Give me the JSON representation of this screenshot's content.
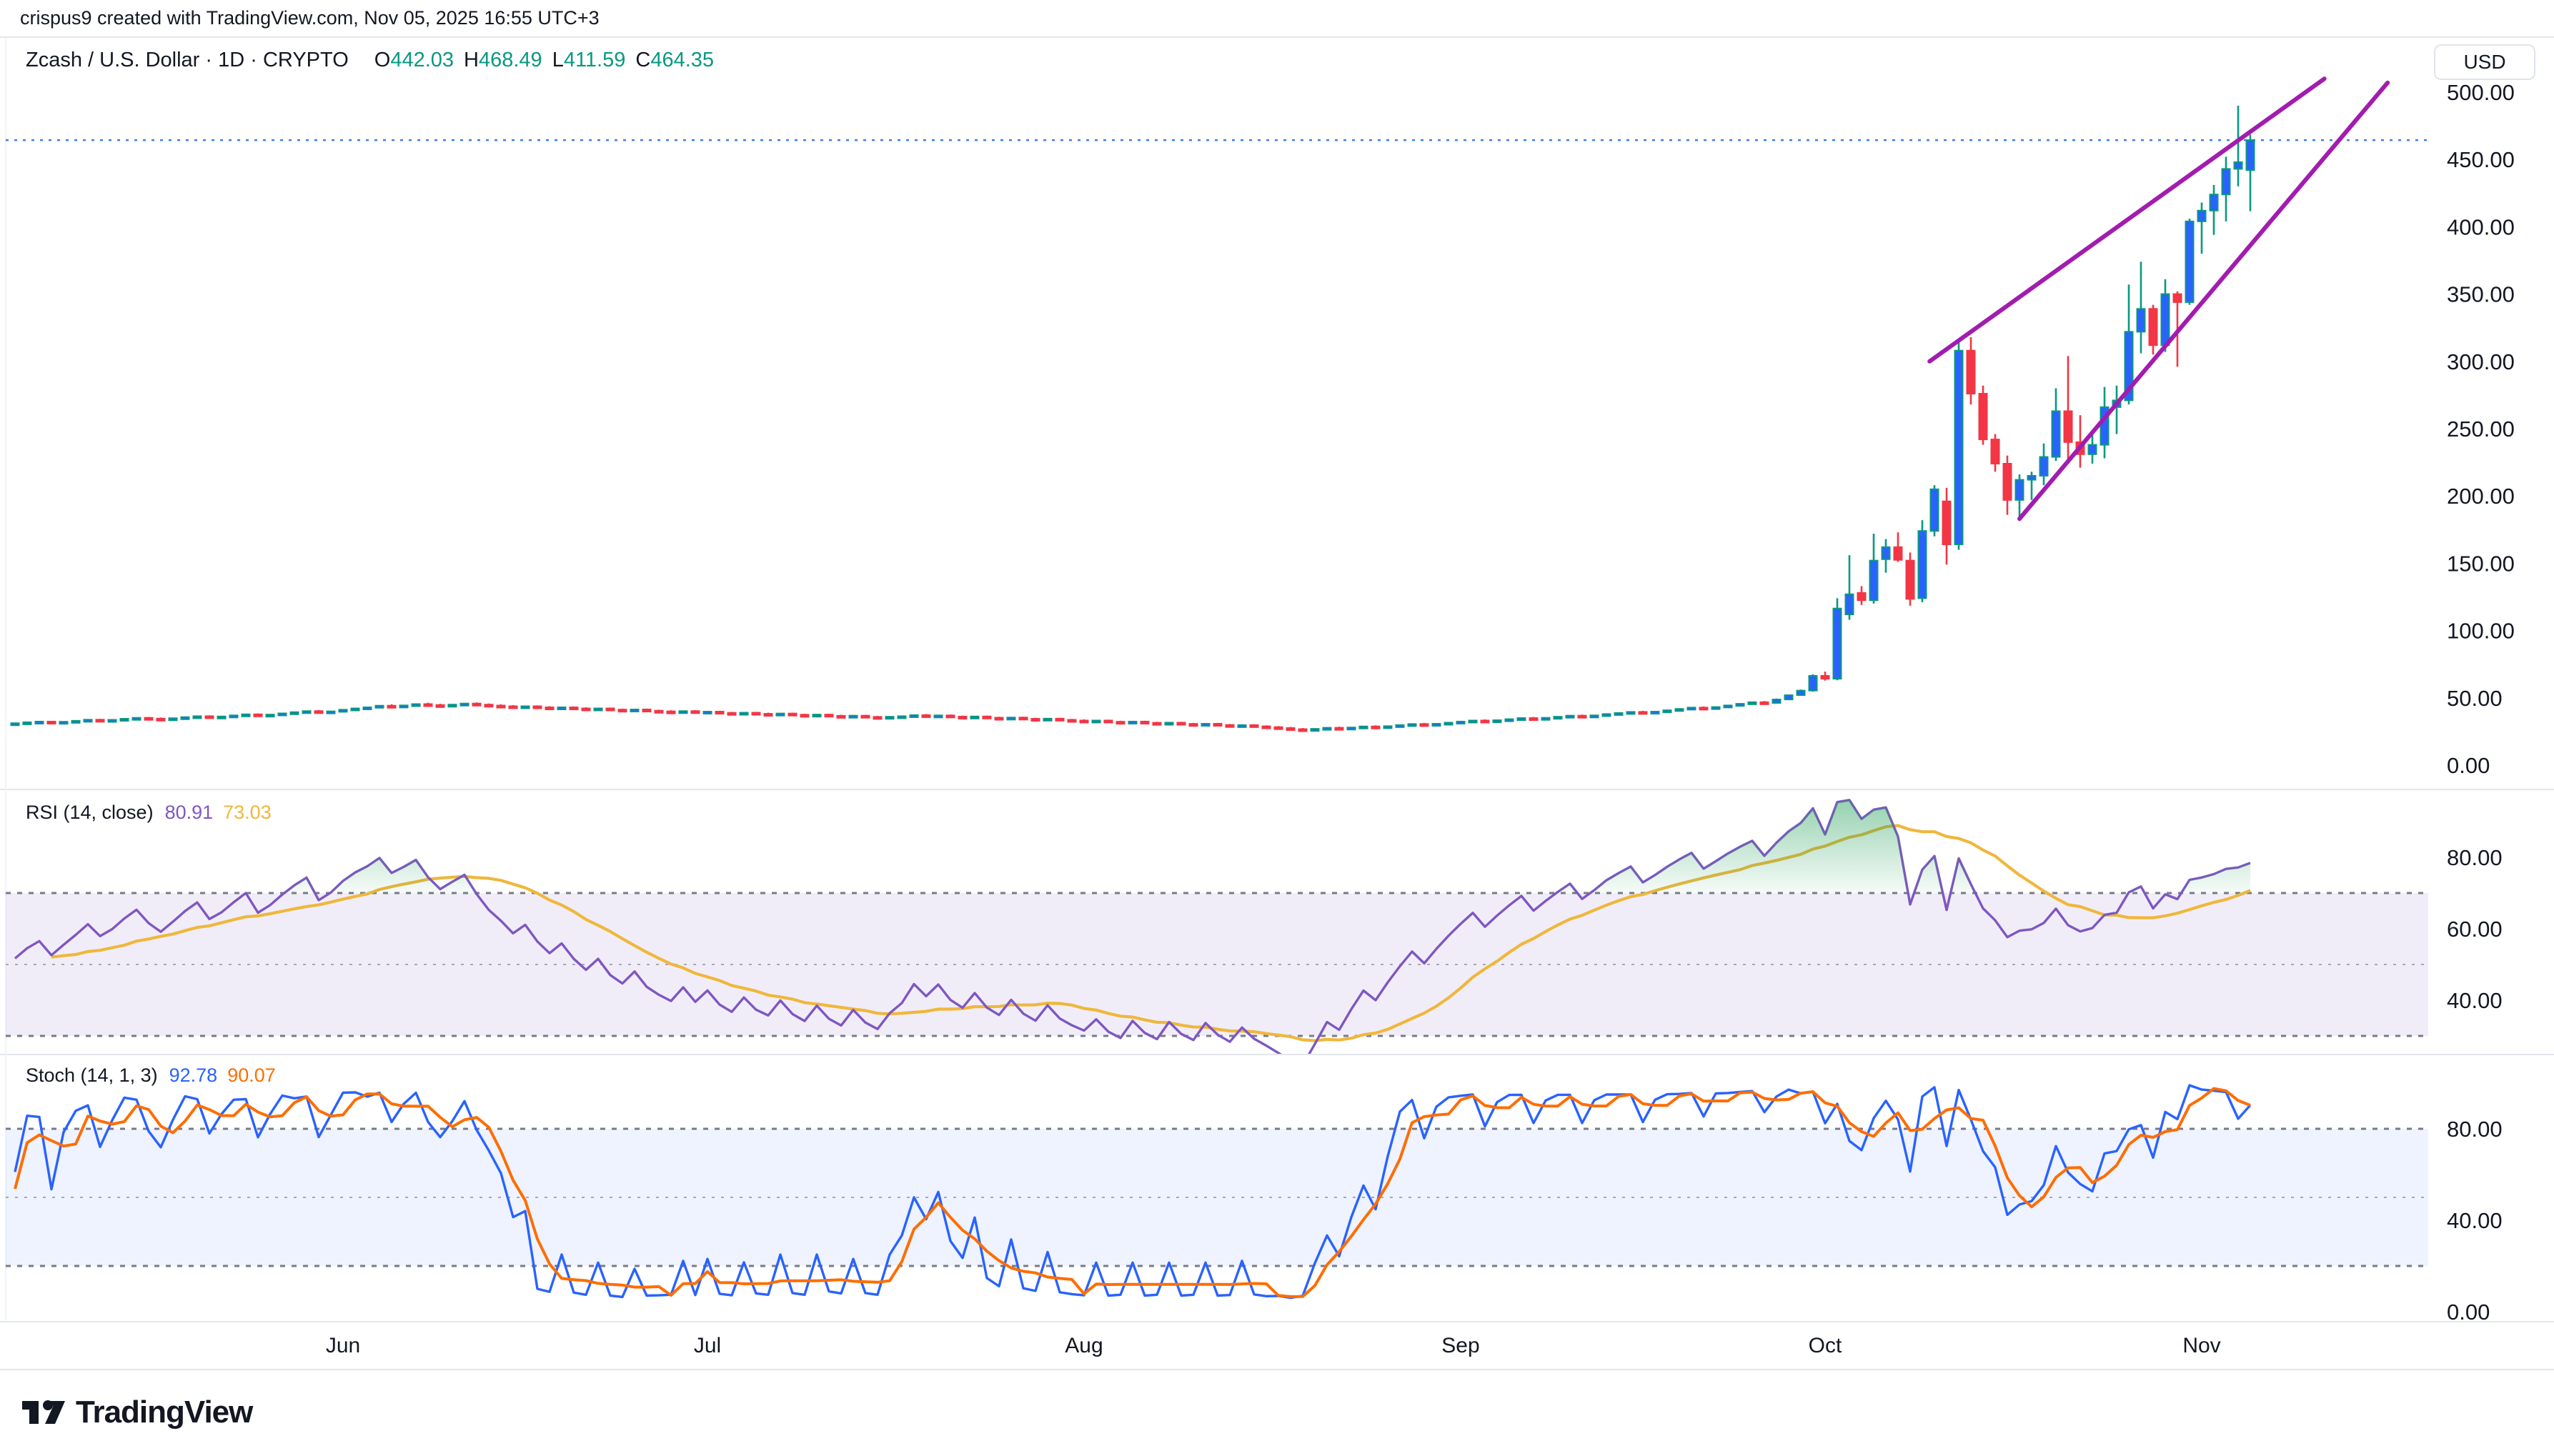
{
  "header": {
    "attribution": "crispus9 created with TradingView.com, Nov 05, 2025 16:55 UTC+3"
  },
  "symbol_bar": {
    "title": "Zcash / U.S. Dollar · 1D · CRYPTO",
    "ohlc": {
      "o_label": "O",
      "o": "442.03",
      "h_label": "H",
      "h": "468.49",
      "l_label": "L",
      "l": "411.59",
      "c_label": "C",
      "c": "464.35"
    }
  },
  "price_axis": {
    "unit_badge": "USD",
    "ticks": [
      [
        500,
        "500.00"
      ],
      [
        450,
        "450.00"
      ],
      [
        400,
        "400.00"
      ],
      [
        350,
        "350.00"
      ],
      [
        300,
        "300.00"
      ],
      [
        250,
        "250.00"
      ],
      [
        200,
        "200.00"
      ],
      [
        150,
        "150.00"
      ],
      [
        100,
        "100.00"
      ],
      [
        50,
        "50.00"
      ],
      [
        0,
        "0.00"
      ]
    ]
  },
  "rsi_pane": {
    "title": "RSI (14, close)",
    "value_rsi": "80.91",
    "value_ma": "73.03",
    "ticks": [
      [
        80,
        "80.00"
      ],
      [
        60,
        "60.00"
      ],
      [
        40,
        "40.00"
      ]
    ],
    "levels": {
      "upper": 70,
      "middle": 50,
      "lower": 30
    }
  },
  "stoch_pane": {
    "title": "Stoch (14, 1, 3)",
    "value_k": "92.78",
    "value_d": "90.07",
    "ticks": [
      [
        80,
        "80.00"
      ],
      [
        40,
        "40.00"
      ],
      [
        0,
        "0.00"
      ]
    ],
    "levels": {
      "upper": 80,
      "middle": 50,
      "lower": 20
    }
  },
  "time_axis": {
    "months": [
      [
        "Jun",
        27
      ],
      [
        "Jul",
        57
      ],
      [
        "Aug",
        88
      ],
      [
        "Sep",
        119
      ],
      [
        "Oct",
        149
      ],
      [
        "Nov",
        180
      ]
    ]
  },
  "footer": {
    "brand": "TradingView"
  },
  "colors": {
    "up_body": "#2962FF",
    "up_border": "#089981",
    "down": "#F23645",
    "rsi_line": "#7E57C2",
    "rsi_ma": "#EFB73B",
    "stoch_k": "#2962FF",
    "stoch_d": "#FF6D00",
    "trendline": "#A21CAF",
    "price_line": "#3D7EEB",
    "level_dash": "#787B86",
    "mid_dash": "#A6A9B3",
    "separator": "#E4E6EC",
    "text": "#131722",
    "rsi_band": "rgba(126,87,194,0.11)",
    "stoch_band": "rgba(41,98,255,0.08)",
    "overbought_fill": "#1F9D55"
  },
  "chart_data": {
    "type": "bar",
    "subtype": "candlestick-with-oscillators",
    "symbol": "ZECUSD",
    "title": "Zcash / U.S. Dollar",
    "interval": "1D",
    "exchange": "CRYPTO",
    "start_date": "2025-05-05",
    "end_date": "2025-11-05",
    "last_bar": {
      "open": 442.03,
      "high": 468.49,
      "low": 411.59,
      "close": 464.35
    },
    "price_line": 464.35,
    "ylim": [
      0,
      530
    ],
    "candles": [
      [
        30.8,
        31.6,
        30.2,
        31.2
      ],
      [
        31.2,
        32.2,
        30.8,
        31.9
      ],
      [
        31.9,
        32.8,
        31.4,
        32.4
      ],
      [
        32.4,
        32.9,
        31.2,
        31.6
      ],
      [
        31.6,
        32.6,
        31.1,
        32.3
      ],
      [
        32.3,
        33.4,
        31.9,
        33.0
      ],
      [
        33.0,
        34.2,
        32.6,
        33.8
      ],
      [
        33.8,
        34.4,
        32.8,
        33.2
      ],
      [
        33.2,
        34.0,
        32.5,
        33.7
      ],
      [
        33.7,
        34.8,
        33.3,
        34.5
      ],
      [
        34.5,
        35.6,
        34.0,
        35.2
      ],
      [
        35.2,
        35.8,
        34.2,
        34.6
      ],
      [
        34.6,
        35.4,
        33.9,
        34.2
      ],
      [
        34.2,
        35.2,
        33.8,
        34.9
      ],
      [
        34.9,
        36.0,
        34.4,
        35.7
      ],
      [
        35.7,
        36.8,
        35.2,
        36.4
      ],
      [
        36.4,
        37.0,
        35.3,
        35.7
      ],
      [
        35.7,
        36.6,
        35.1,
        36.2
      ],
      [
        36.2,
        37.4,
        35.8,
        37.0
      ],
      [
        37.0,
        38.2,
        36.5,
        37.8
      ],
      [
        37.8,
        38.4,
        36.6,
        37.0
      ],
      [
        37.0,
        38.0,
        36.4,
        37.6
      ],
      [
        37.6,
        38.8,
        37.1,
        38.5
      ],
      [
        38.5,
        39.8,
        38.0,
        39.4
      ],
      [
        39.4,
        40.6,
        38.9,
        40.2
      ],
      [
        40.2,
        41.0,
        38.9,
        39.3
      ],
      [
        39.3,
        40.4,
        38.8,
        40.0
      ],
      [
        40.0,
        41.5,
        39.5,
        41.2
      ],
      [
        41.2,
        42.5,
        40.8,
        42.2
      ],
      [
        42.2,
        43.5,
        41.6,
        43.0
      ],
      [
        43.0,
        44.6,
        42.6,
        44.2
      ],
      [
        44.2,
        45.2,
        43.1,
        43.6
      ],
      [
        43.6,
        44.8,
        43.0,
        44.4
      ],
      [
        44.4,
        45.8,
        44.0,
        45.4
      ],
      [
        45.4,
        46.4,
        44.2,
        44.7
      ],
      [
        44.7,
        45.6,
        43.8,
        44.2
      ],
      [
        44.2,
        45.4,
        43.6,
        45.0
      ],
      [
        45.0,
        46.2,
        44.4,
        45.8
      ],
      [
        45.8,
        46.6,
        44.6,
        45.0
      ],
      [
        45.0,
        45.8,
        43.9,
        44.3
      ],
      [
        44.3,
        45.2,
        43.4,
        43.8
      ],
      [
        43.8,
        44.6,
        42.8,
        43.2
      ],
      [
        43.2,
        44.2,
        42.6,
        43.8
      ],
      [
        43.8,
        44.4,
        42.6,
        43.0
      ],
      [
        43.0,
        43.8,
        42.0,
        42.4
      ],
      [
        42.4,
        43.4,
        41.8,
        43.0
      ],
      [
        43.0,
        43.6,
        41.8,
        42.2
      ],
      [
        42.2,
        43.0,
        41.2,
        41.6
      ],
      [
        41.6,
        42.6,
        41.0,
        42.2
      ],
      [
        42.2,
        42.8,
        40.9,
        41.3
      ],
      [
        41.3,
        42.0,
        40.4,
        40.8
      ],
      [
        40.8,
        41.8,
        40.2,
        41.4
      ],
      [
        41.4,
        42.0,
        40.1,
        40.5
      ],
      [
        40.5,
        41.2,
        39.6,
        40.0
      ],
      [
        40.0,
        40.8,
        39.2,
        39.6
      ],
      [
        39.6,
        40.6,
        39.0,
        40.2
      ],
      [
        40.2,
        40.8,
        38.9,
        39.3
      ],
      [
        39.3,
        40.2,
        38.6,
        39.8
      ],
      [
        39.8,
        40.4,
        38.5,
        38.9
      ],
      [
        38.9,
        39.6,
        38.0,
        38.4
      ],
      [
        38.4,
        39.4,
        37.9,
        39.0
      ],
      [
        39.0,
        39.6,
        37.8,
        38.2
      ],
      [
        38.2,
        39.0,
        37.4,
        37.8
      ],
      [
        37.8,
        38.8,
        37.2,
        38.4
      ],
      [
        38.4,
        39.0,
        37.1,
        37.5
      ],
      [
        37.5,
        38.2,
        36.6,
        37.0
      ],
      [
        37.0,
        38.0,
        36.4,
        37.6
      ],
      [
        37.6,
        38.2,
        36.3,
        36.7
      ],
      [
        36.7,
        37.4,
        35.8,
        36.2
      ],
      [
        36.2,
        37.2,
        35.6,
        36.8
      ],
      [
        36.8,
        37.4,
        35.5,
        35.9
      ],
      [
        35.9,
        36.6,
        35.0,
        35.4
      ],
      [
        35.4,
        36.4,
        34.8,
        36.0
      ],
      [
        36.0,
        36.8,
        35.2,
        36.4
      ],
      [
        36.4,
        37.6,
        36.0,
        37.2
      ],
      [
        37.2,
        38.0,
        36.1,
        36.5
      ],
      [
        36.5,
        37.4,
        35.8,
        37.0
      ],
      [
        37.0,
        37.6,
        35.7,
        36.1
      ],
      [
        36.1,
        36.8,
        35.2,
        35.6
      ],
      [
        35.6,
        36.6,
        35.0,
        36.2
      ],
      [
        36.2,
        36.8,
        34.9,
        35.3
      ],
      [
        35.3,
        36.0,
        34.4,
        34.8
      ],
      [
        34.8,
        35.8,
        34.2,
        35.4
      ],
      [
        35.4,
        36.0,
        34.1,
        34.5
      ],
      [
        34.5,
        35.2,
        33.6,
        34.0
      ],
      [
        34.0,
        35.0,
        33.4,
        34.6
      ],
      [
        34.6,
        35.2,
        33.3,
        33.7
      ],
      [
        33.7,
        34.4,
        32.8,
        33.2
      ],
      [
        33.2,
        34.0,
        32.4,
        32.8
      ],
      [
        32.8,
        33.6,
        32.0,
        33.2
      ],
      [
        33.2,
        33.8,
        31.9,
        32.3
      ],
      [
        32.3,
        33.0,
        31.4,
        31.8
      ],
      [
        31.8,
        32.8,
        31.2,
        32.4
      ],
      [
        32.4,
        33.0,
        31.1,
        31.5
      ],
      [
        31.5,
        32.2,
        30.6,
        31.0
      ],
      [
        31.0,
        32.0,
        30.4,
        31.6
      ],
      [
        31.6,
        32.2,
        30.3,
        30.7
      ],
      [
        30.7,
        31.4,
        29.8,
        30.2
      ],
      [
        30.2,
        31.2,
        29.6,
        30.8
      ],
      [
        30.8,
        31.4,
        29.5,
        29.9
      ],
      [
        29.9,
        30.6,
        28.9,
        29.3
      ],
      [
        29.3,
        30.2,
        28.6,
        29.8
      ],
      [
        29.8,
        30.4,
        28.5,
        28.9
      ],
      [
        28.9,
        29.6,
        27.9,
        28.3
      ],
      [
        28.3,
        29.0,
        27.2,
        27.6
      ],
      [
        27.6,
        28.4,
        26.4,
        26.8
      ],
      [
        26.8,
        27.6,
        25.8,
        26.3
      ],
      [
        26.3,
        27.4,
        25.6,
        27.0
      ],
      [
        27.0,
        28.2,
        26.6,
        27.8
      ],
      [
        27.8,
        28.6,
        26.8,
        27.2
      ],
      [
        27.2,
        28.4,
        26.9,
        28.0
      ],
      [
        28.0,
        29.2,
        27.6,
        28.8
      ],
      [
        28.8,
        29.6,
        27.8,
        28.2
      ],
      [
        28.2,
        29.4,
        27.9,
        29.0
      ],
      [
        29.0,
        30.2,
        28.6,
        29.8
      ],
      [
        29.8,
        31.0,
        29.4,
        30.6
      ],
      [
        30.6,
        31.4,
        29.6,
        30.0
      ],
      [
        30.0,
        31.2,
        29.6,
        30.8
      ],
      [
        30.8,
        32.0,
        30.4,
        31.6
      ],
      [
        31.6,
        32.8,
        31.2,
        32.4
      ],
      [
        32.4,
        33.6,
        32.0,
        33.2
      ],
      [
        33.2,
        34.0,
        32.2,
        32.6
      ],
      [
        32.6,
        33.8,
        32.2,
        33.4
      ],
      [
        33.4,
        34.6,
        33.0,
        34.2
      ],
      [
        34.2,
        35.4,
        33.8,
        35.0
      ],
      [
        35.0,
        35.8,
        34.0,
        34.4
      ],
      [
        34.4,
        35.6,
        34.0,
        35.2
      ],
      [
        35.2,
        36.4,
        34.8,
        36.0
      ],
      [
        36.0,
        37.2,
        35.6,
        36.8
      ],
      [
        36.8,
        37.6,
        35.8,
        36.2
      ],
      [
        36.2,
        37.4,
        35.8,
        37.0
      ],
      [
        37.0,
        38.4,
        36.6,
        38.0
      ],
      [
        38.0,
        39.2,
        37.6,
        38.8
      ],
      [
        38.8,
        40.0,
        38.4,
        39.6
      ],
      [
        39.6,
        40.4,
        38.6,
        39.0
      ],
      [
        39.0,
        40.2,
        38.6,
        39.8
      ],
      [
        39.8,
        41.2,
        39.4,
        40.8
      ],
      [
        40.8,
        42.2,
        40.4,
        41.8
      ],
      [
        41.8,
        43.2,
        41.4,
        42.8
      ],
      [
        42.8,
        43.6,
        41.8,
        42.2
      ],
      [
        42.2,
        43.6,
        41.8,
        43.2
      ],
      [
        43.2,
        44.8,
        42.8,
        44.4
      ],
      [
        44.4,
        46.0,
        44.0,
        45.6
      ],
      [
        45.6,
        47.2,
        45.2,
        46.8
      ],
      [
        46.8,
        47.6,
        45.8,
        46.2
      ],
      [
        46.2,
        49.5,
        45.8,
        48.8
      ],
      [
        48.8,
        52.4,
        48.2,
        52.0
      ],
      [
        52.0,
        56.2,
        51.6,
        55.4
      ],
      [
        55.4,
        67.5,
        54.6,
        66.4
      ],
      [
        66.4,
        69.5,
        62.8,
        64.2
      ],
      [
        64.2,
        124.0,
        63.0,
        116.4
      ],
      [
        112.0,
        156.0,
        108.0,
        127.0
      ],
      [
        128.0,
        133.0,
        119.0,
        122.5
      ],
      [
        122.5,
        172.0,
        120.0,
        152.0
      ],
      [
        153.0,
        168.0,
        143.0,
        162.0
      ],
      [
        162.0,
        173.0,
        151.0,
        152.5
      ],
      [
        152.0,
        158.0,
        118.5,
        123.5
      ],
      [
        124.0,
        182.0,
        121.0,
        174.0
      ],
      [
        174.0,
        208.0,
        170.0,
        205.0
      ],
      [
        196.0,
        206.0,
        149.0,
        164.0
      ],
      [
        164.0,
        316.0,
        160.0,
        308.0
      ],
      [
        308.0,
        318.0,
        268.0,
        276.0
      ],
      [
        276.0,
        282.0,
        238.0,
        242.0
      ],
      [
        242.0,
        246.0,
        218.0,
        224.0
      ],
      [
        224.0,
        230.0,
        186.0,
        197.0
      ],
      [
        197.0,
        216.0,
        184.0,
        212.0
      ],
      [
        212.0,
        218.0,
        197.0,
        215.0
      ],
      [
        215.0,
        239.0,
        208.0,
        229.0
      ],
      [
        229.0,
        280.0,
        226.0,
        263.0
      ],
      [
        263.0,
        304.0,
        224.0,
        240.0
      ],
      [
        240.0,
        260.0,
        221.0,
        231.0
      ],
      [
        231.0,
        248.0,
        224.0,
        238.0
      ],
      [
        238.0,
        281.0,
        228.0,
        266.0
      ],
      [
        266.0,
        282.0,
        246.0,
        271.0
      ],
      [
        271.0,
        357.0,
        268.0,
        322.0
      ],
      [
        322.0,
        374.0,
        306.0,
        339.0
      ],
      [
        339.0,
        342.0,
        305.0,
        312.0
      ],
      [
        312.0,
        361.0,
        307.0,
        350.0
      ],
      [
        350.0,
        352.0,
        296.0,
        344.0
      ],
      [
        344.0,
        406.0,
        342.0,
        404.0
      ],
      [
        404.0,
        418.0,
        380.0,
        412.0
      ],
      [
        412.0,
        431.0,
        394.0,
        424.0
      ],
      [
        424.0,
        452.0,
        404.0,
        443.0
      ],
      [
        443.0,
        490.0,
        430.0,
        448.0
      ],
      [
        442.03,
        468.49,
        411.59,
        464.35
      ]
    ],
    "trendlines": [
      {
        "name": "upper-channel-line",
        "from": {
          "bar": 157.6,
          "price": 300
        },
        "to": {
          "bar": 190.1,
          "price": 510
        }
      },
      {
        "name": "lower-channel-line",
        "from": {
          "bar": 165.0,
          "price": 183
        },
        "to": {
          "bar": 195.3,
          "price": 507
        }
      }
    ],
    "indicators": [
      {
        "name": "RSI",
        "params": [
          14,
          "close"
        ],
        "current": [
          80.91,
          73.03
        ],
        "overbought": 70,
        "oversold": 30
      },
      {
        "name": "Stochastic",
        "params": [
          14,
          1,
          3
        ],
        "current": [
          92.78,
          90.07
        ],
        "overbought": 80,
        "oversold": 20
      }
    ]
  }
}
